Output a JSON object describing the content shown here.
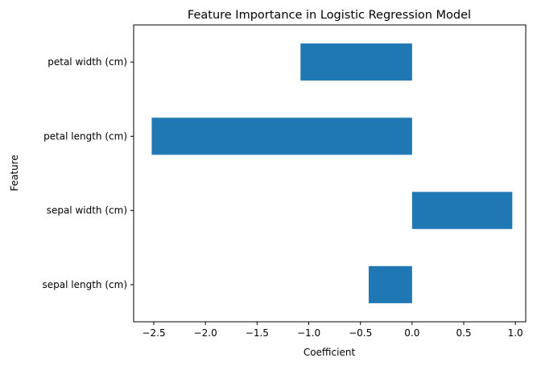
{
  "chart_data": {
    "type": "bar",
    "orientation": "horizontal",
    "title": "Feature Importance in Logistic Regression Model",
    "xlabel": "Coefficient",
    "ylabel": "Feature",
    "categories": [
      "sepal length (cm)",
      "sepal width (cm)",
      "petal length (cm)",
      "petal width (cm)"
    ],
    "values": [
      -0.42,
      0.97,
      -2.52,
      -1.08
    ],
    "xlim": [
      -2.695,
      1.1
    ],
    "xticks": [
      -2.5,
      -2.0,
      -1.5,
      -1.0,
      -0.5,
      0.0,
      0.5,
      1.0
    ],
    "xtick_labels": [
      "−2.5",
      "−2.0",
      "−1.5",
      "−1.0",
      "−0.5",
      "0.0",
      "0.5",
      "1.0"
    ],
    "grid": false,
    "bar_color": "#1f77b4"
  }
}
